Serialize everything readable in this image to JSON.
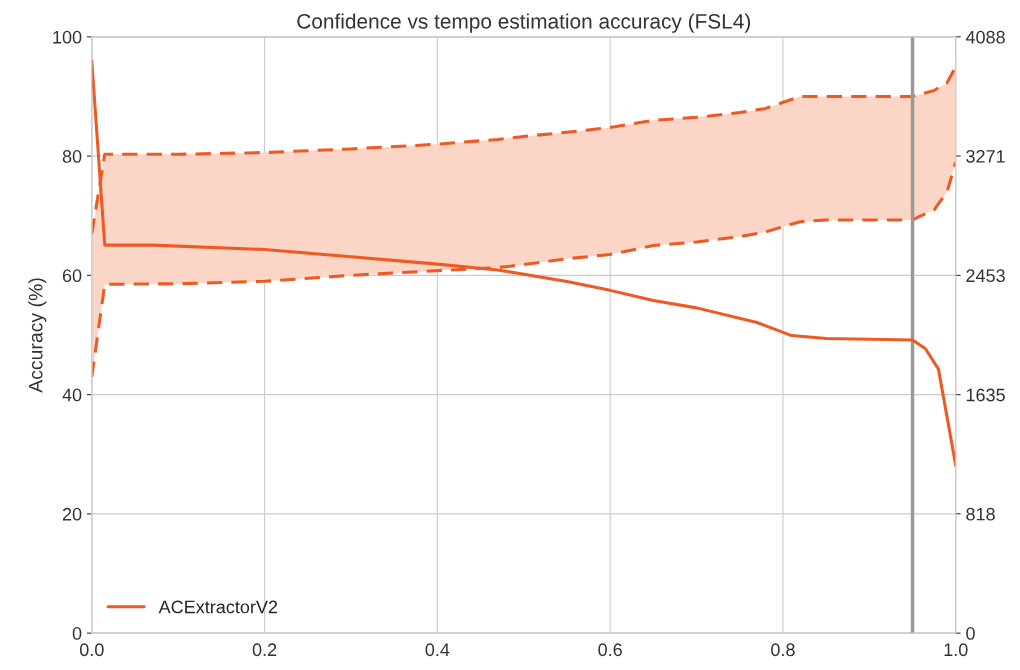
{
  "chart_data": {
    "type": "line",
    "title": "Confidence vs tempo estimation accuracy (FSL4)",
    "ylabel": "Accuracy (%)",
    "xlim": [
      0,
      1
    ],
    "xticks": [
      {
        "value": 0,
        "label": "0.0"
      },
      0.2,
      0.4,
      0.6,
      0.8,
      {
        "value": 1,
        "label": "1.0"
      }
    ],
    "ylim": [
      0,
      100
    ],
    "yticks": [
      0,
      20,
      40,
      60,
      80,
      100
    ],
    "y2lim": [
      0,
      4088
    ],
    "y2ticks": [
      0,
      818,
      1635,
      2453,
      3271,
      4088
    ],
    "grid": true,
    "legend": "bottom left",
    "ref_lines": [
      {
        "axis": "x",
        "value": 0.95,
        "color": "#999999"
      }
    ],
    "series": [
      {
        "color": "#ee5a24",
        "line_style": "dashed",
        "x": [
          0,
          0.015,
          0.1,
          0.2,
          0.3,
          0.4,
          0.47,
          0.5,
          0.55,
          0.6,
          0.65,
          0.7,
          0.75,
          0.78,
          0.82,
          0.85,
          0.95,
          0.975,
          0.99,
          1.0
        ],
        "values": [
          67,
          80.3,
          80.3,
          80.6,
          81.2,
          82,
          82.8,
          83.3,
          84,
          84.8,
          86,
          86.5,
          87.3,
          88,
          90,
          90,
          90,
          91,
          92.3,
          95
        ],
        "lower": [
          43,
          58.5,
          58.6,
          59,
          60,
          60.8,
          61.3,
          61.8,
          62.8,
          63.5,
          65,
          65.6,
          66.5,
          67.3,
          69,
          69.3,
          69.3,
          71,
          74,
          79
        ],
        "upper": [
          67,
          80.3,
          80.3,
          80.6,
          81.2,
          82,
          82.8,
          83.3,
          84,
          84.8,
          86,
          86.5,
          87.3,
          88,
          90,
          90,
          90,
          91,
          92.3,
          95
        ]
      },
      {
        "color": "#ee5a24",
        "line_style": "dashed",
        "x": [
          0,
          0.015,
          0.1,
          0.2,
          0.3,
          0.4,
          0.47,
          0.5,
          0.55,
          0.6,
          0.65,
          0.7,
          0.75,
          0.78,
          0.82,
          0.85,
          0.95,
          0.975,
          0.99,
          1.0
        ],
        "values": [
          43,
          58.5,
          58.6,
          59,
          60,
          60.8,
          61.3,
          61.8,
          62.8,
          63.5,
          65,
          65.6,
          66.5,
          67.3,
          69,
          69.3,
          69.3,
          71,
          74,
          79
        ]
      },
      {
        "name": "ACExtractorV2",
        "color": "#ee5a24",
        "line_style": "solid",
        "axis": "y2",
        "x": [
          0,
          0.015,
          0.07,
          0.2,
          0.3,
          0.4,
          0.47,
          0.55,
          0.6,
          0.65,
          0.7,
          0.77,
          0.81,
          0.85,
          0.95,
          0.965,
          0.98,
          1.0
        ],
        "values": [
          3920,
          2660,
          2660,
          2630,
          2580,
          2530,
          2490,
          2410,
          2350,
          2280,
          2230,
          2130,
          2040,
          2020,
          2010,
          1950,
          1810,
          1150
        ]
      }
    ]
  }
}
